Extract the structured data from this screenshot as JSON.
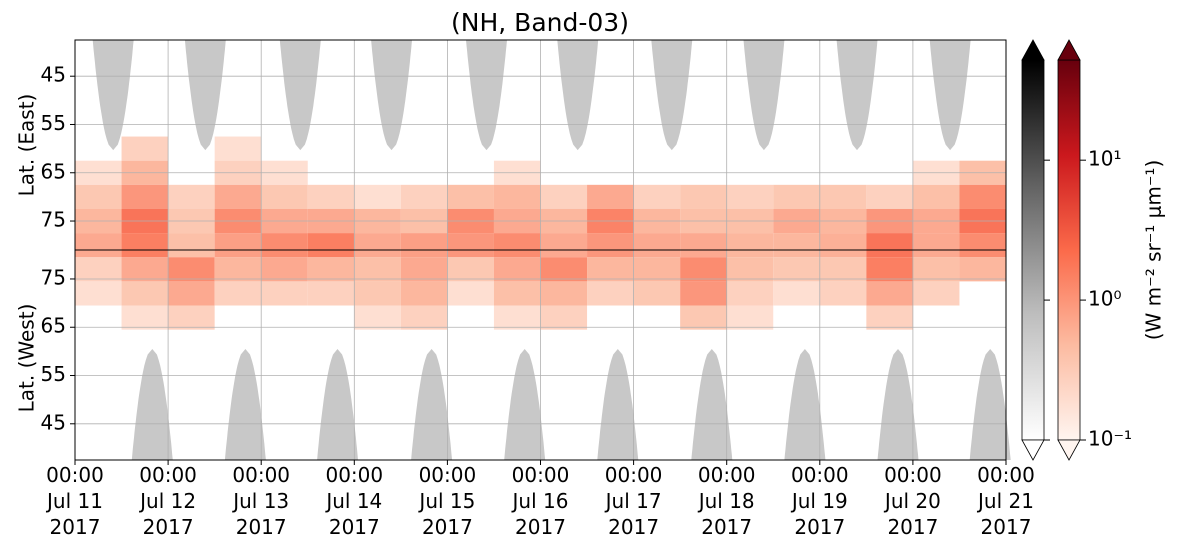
{
  "chart_data": {
    "type": "heatmap",
    "title": "(NH, Band-03)",
    "ylabel_top": "Lat. (East)",
    "ylabel_bottom": "Lat. (West)",
    "xlim": [
      0,
      10
    ],
    "xticks": [
      {
        "value": 0,
        "label": [
          "00:00",
          "Jul 11",
          "2017"
        ]
      },
      {
        "value": 1,
        "label": [
          "00:00",
          "Jul 12",
          "2017"
        ]
      },
      {
        "value": 2,
        "label": [
          "00:00",
          "Jul 13",
          "2017"
        ]
      },
      {
        "value": 3,
        "label": [
          "00:00",
          "Jul 14",
          "2017"
        ]
      },
      {
        "value": 4,
        "label": [
          "00:00",
          "Jul 15",
          "2017"
        ]
      },
      {
        "value": 5,
        "label": [
          "00:00",
          "Jul 16",
          "2017"
        ]
      },
      {
        "value": 6,
        "label": [
          "00:00",
          "Jul 17",
          "2017"
        ]
      },
      {
        "value": 7,
        "label": [
          "00:00",
          "Jul 18",
          "2017"
        ]
      },
      {
        "value": 8,
        "label": [
          "00:00",
          "Jul 19",
          "2017"
        ]
      },
      {
        "value": 9,
        "label": [
          "00:00",
          "Jul 20",
          "2017"
        ]
      },
      {
        "value": 10,
        "label": [
          "00:00",
          "Jul 21",
          "2017"
        ]
      }
    ],
    "ylim": [
      37.5,
      124.5
    ],
    "yticks": [
      45,
      55,
      65,
      75,
      {
        "value": 87,
        "label": "75"
      },
      {
        "value": 97,
        "label": "65"
      },
      {
        "value": 107,
        "label": "55"
      },
      {
        "value": 117,
        "label": "45"
      }
    ],
    "divider": 81,
    "grid": true,
    "x_bins": [
      0,
      0.5,
      1,
      1.5,
      2,
      2.5,
      3,
      3.5,
      4,
      4.5,
      5,
      5.5,
      6,
      6.5,
      7,
      7.5,
      8,
      8.5,
      9,
      9.5,
      10
    ],
    "y_bins": [
      57.5,
      62.5,
      67.5,
      72.5,
      77.5,
      82.5,
      87.5,
      92.5,
      97.5
    ],
    "values": [
      [
        null,
        0.3,
        null,
        0.2,
        null,
        null,
        null,
        null,
        null,
        null,
        null,
        null,
        null,
        null,
        null,
        null,
        null,
        null,
        null,
        null
      ],
      [
        0.2,
        0.6,
        null,
        0.3,
        0.2,
        null,
        null,
        null,
        null,
        0.2,
        null,
        null,
        null,
        null,
        null,
        null,
        null,
        null,
        0.2,
        0.5
      ],
      [
        0.4,
        1.2,
        0.3,
        0.8,
        0.4,
        0.3,
        0.2,
        0.3,
        0.5,
        0.6,
        0.3,
        0.8,
        0.3,
        0.4,
        0.3,
        0.4,
        0.4,
        0.3,
        0.5,
        1.5
      ],
      [
        0.6,
        2.5,
        0.4,
        1.5,
        0.8,
        0.8,
        0.6,
        0.5,
        1.5,
        0.8,
        0.6,
        1.8,
        0.6,
        0.5,
        0.5,
        0.8,
        0.6,
        1.2,
        0.8,
        2.5
      ],
      [
        0.8,
        2.0,
        0.5,
        1.0,
        1.5,
        2.0,
        0.8,
        1.0,
        1.2,
        1.5,
        0.8,
        1.2,
        0.8,
        0.8,
        0.6,
        0.6,
        0.7,
        2.5,
        0.8,
        1.5
      ],
      [
        0.3,
        0.8,
        1.5,
        0.6,
        0.8,
        0.6,
        0.5,
        0.8,
        0.4,
        0.8,
        1.5,
        0.6,
        0.6,
        1.5,
        0.5,
        0.4,
        0.4,
        2.0,
        0.5,
        0.6
      ],
      [
        0.2,
        0.4,
        0.8,
        0.3,
        0.3,
        0.3,
        0.4,
        0.6,
        0.2,
        0.5,
        0.6,
        0.3,
        0.4,
        1.2,
        0.3,
        0.2,
        0.3,
        0.8,
        0.3,
        null
      ],
      [
        null,
        0.2,
        0.3,
        null,
        null,
        null,
        0.2,
        0.3,
        null,
        0.2,
        0.3,
        null,
        null,
        0.4,
        0.2,
        null,
        null,
        0.3,
        null,
        null
      ]
    ],
    "gray_regions": [
      {
        "x": [
          0.41,
          1.4,
          2.42,
          3.4,
          4.42,
          5.4,
          6.41,
          7.4,
          8.4,
          9.4
        ],
        "tip": 60.3,
        "half_width": 0.22,
        "color": "#c8c8c8"
      },
      {
        "x": [
          0.83,
          1.83,
          2.82,
          3.83,
          4.83,
          5.83,
          6.84,
          7.84,
          8.84,
          9.83
        ],
        "tip": 101.5,
        "half_width": 0.22,
        "color": "#c8c8c8"
      }
    ],
    "colorbar": {
      "label": "(W m⁻² sr⁻¹ μm⁻¹)",
      "lim": [
        0.1,
        52
      ],
      "log": true,
      "ticks": [
        {
          "value": 0.1,
          "label": "10⁻¹"
        },
        {
          "value": 1,
          "label": "10⁰"
        },
        {
          "value": 10,
          "label": "10¹"
        }
      ],
      "colors": [
        "#fff5f0",
        "#fcbba1",
        "#fb6a4a",
        "#cb181d",
        "#67000d"
      ],
      "gray_colors": [
        "#ffffff",
        "#bdbdbd",
        "#636363",
        "#000000"
      ]
    }
  }
}
